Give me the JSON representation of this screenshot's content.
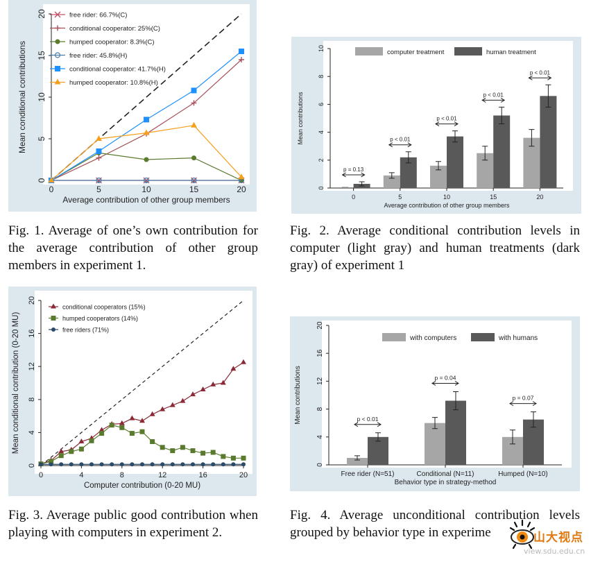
{
  "chart_data": [
    {
      "type": "line",
      "ylabel": "Mean conditional contributions",
      "xlabel": "Average contribution of other group members",
      "x": [
        0,
        5,
        10,
        15,
        20
      ],
      "xlim": [
        0,
        20
      ],
      "ylim": [
        0,
        20
      ],
      "xticks": [
        "0",
        "5",
        "10",
        "15",
        "20"
      ],
      "yticks": [
        "0",
        "5",
        "10",
        "15",
        "20"
      ],
      "grid": false,
      "legend": "top-left, inside",
      "series": [
        {
          "name": "free rider: 66.7%(C)",
          "color": "#c0506a",
          "marker": "x",
          "values": [
            0,
            0,
            0,
            0,
            0
          ]
        },
        {
          "name": "conditional cooperator: 25%(C)",
          "color": "#a8505a",
          "marker": "plus",
          "values": [
            0,
            2.7,
            5.6,
            9.3,
            14.5
          ]
        },
        {
          "name": "humped cooperator: 8.3%(C)",
          "color": "#5a7a2e",
          "marker": "circle",
          "values": [
            0,
            3.3,
            2.5,
            2.7,
            0
          ]
        },
        {
          "name": "free rider: 45.8%(H)",
          "color": "#4a7ca8",
          "marker": "circle-open",
          "values": [
            0,
            0,
            0,
            0,
            0
          ]
        },
        {
          "name": "conditional cooperator: 41.7%(H)",
          "color": "#1e90ff",
          "marker": "square",
          "values": [
            0,
            3.5,
            7.3,
            10.8,
            15.5
          ]
        },
        {
          "name": "humped cooperator: 10.8%(H)",
          "color": "#f5a020",
          "marker": "triangle",
          "values": [
            0,
            5.0,
            5.7,
            6.6,
            0.4
          ]
        }
      ],
      "reference_line": "y = x (dashed)"
    },
    {
      "type": "bar",
      "ylabel": "Mean contributions",
      "xlabel": "Average contribution of other group members",
      "categories": [
        "0",
        "5",
        "10",
        "15",
        "20"
      ],
      "ylim": [
        0,
        10
      ],
      "yticks": [
        "0",
        "2",
        "4",
        "6",
        "8",
        "10"
      ],
      "legend": "top, inside",
      "series": [
        {
          "name": "computer treatment",
          "color": "#a6a6a6",
          "values": [
            0.0,
            0.9,
            1.6,
            2.5,
            3.6
          ],
          "errors": [
            0,
            0.2,
            0.3,
            0.5,
            0.6
          ]
        },
        {
          "name": "human treatment",
          "color": "#595959",
          "values": [
            0.3,
            2.2,
            3.7,
            5.2,
            6.6
          ],
          "errors": [
            0.15,
            0.4,
            0.4,
            0.6,
            0.8
          ]
        }
      ],
      "annotations": [
        "p = 0.13",
        "p < 0.01",
        "p < 0.01",
        "p < 0.01",
        "p < 0.01"
      ]
    },
    {
      "type": "line",
      "ylabel": "Mean conditional contribution (0-20 MU)",
      "xlabel": "Computer contribution (0-20 MU)",
      "x": [
        0,
        1,
        2,
        3,
        4,
        5,
        6,
        7,
        8,
        9,
        10,
        11,
        12,
        13,
        14,
        15,
        16,
        17,
        18,
        19,
        20
      ],
      "xlim": [
        0,
        20
      ],
      "ylim": [
        0,
        20
      ],
      "xticks": [
        "0",
        "4",
        "8",
        "12",
        "16",
        "20"
      ],
      "yticks": [
        "0",
        "4",
        "8",
        "12",
        "16",
        "20"
      ],
      "grid": false,
      "legend": "top-left, inside",
      "series": [
        {
          "name": "conditional cooperators (15%)",
          "color": "#8b2a36",
          "marker": "triangle",
          "values": [
            0.2,
            0.6,
            1.7,
            1.9,
            2.9,
            3.3,
            4.3,
            5.0,
            5.1,
            5.7,
            5.4,
            6.2,
            6.8,
            7.3,
            7.8,
            8.6,
            9.2,
            9.8,
            10.0,
            11.7,
            12.5
          ]
        },
        {
          "name": "humped cooperators (14%)",
          "color": "#5a7a2e",
          "marker": "square",
          "values": [
            0.2,
            0.5,
            1.2,
            1.7,
            2.0,
            3.0,
            3.9,
            4.9,
            4.6,
            3.9,
            4.1,
            2.9,
            2.2,
            1.8,
            2.2,
            1.8,
            1.5,
            1.6,
            1.1,
            0.9,
            0.9
          ]
        },
        {
          "name": "free riders (71%)",
          "color": "#2a4a6a",
          "marker": "circle",
          "values": [
            0.15,
            0.15,
            0.15,
            0.15,
            0.15,
            0.15,
            0.15,
            0.15,
            0.15,
            0.15,
            0.15,
            0.15,
            0.15,
            0.15,
            0.15,
            0.15,
            0.15,
            0.15,
            0.15,
            0.15,
            0.15
          ]
        }
      ],
      "reference_line": "y = x (dashed)"
    },
    {
      "type": "bar",
      "ylabel": "Mean contributions",
      "xlabel": "Behavior type in strategy-method",
      "categories": [
        "Free rider (N=51)",
        "Conditional (N=11)",
        "Humped (N=10)"
      ],
      "ylim": [
        0,
        20
      ],
      "yticks": [
        "0",
        "4",
        "8",
        "12",
        "16",
        "20"
      ],
      "legend": "top, inside",
      "series": [
        {
          "name": "with computers",
          "color": "#a6a6a6",
          "values": [
            1.0,
            6.0,
            4.0
          ],
          "errors": [
            0.3,
            0.8,
            1.0
          ]
        },
        {
          "name": "with humans",
          "color": "#595959",
          "values": [
            4.0,
            9.2,
            6.5
          ],
          "errors": [
            0.6,
            1.3,
            1.1
          ]
        }
      ],
      "annotations": [
        "p < 0.01",
        "p = 0.04",
        "p = 0.07"
      ]
    }
  ],
  "captions": {
    "fig1": "Fig. 1. Average of one’s own contribution for the average contribution of other group members in experiment 1.",
    "fig2": "Fig. 2. Average conditional contribution levels in computer (light gray) and human treatments (dark gray) of experiment 1",
    "fig3": "Fig. 3. Average public good contribution when playing with computers in experiment 2.",
    "fig4": "Fig. 4. Average unconditional contribution levels grouped by behavior type in experime"
  },
  "watermark": {
    "text": "山大视点",
    "url": "view.sdu.edu.cn",
    "icon": "eye-logo-icon"
  }
}
